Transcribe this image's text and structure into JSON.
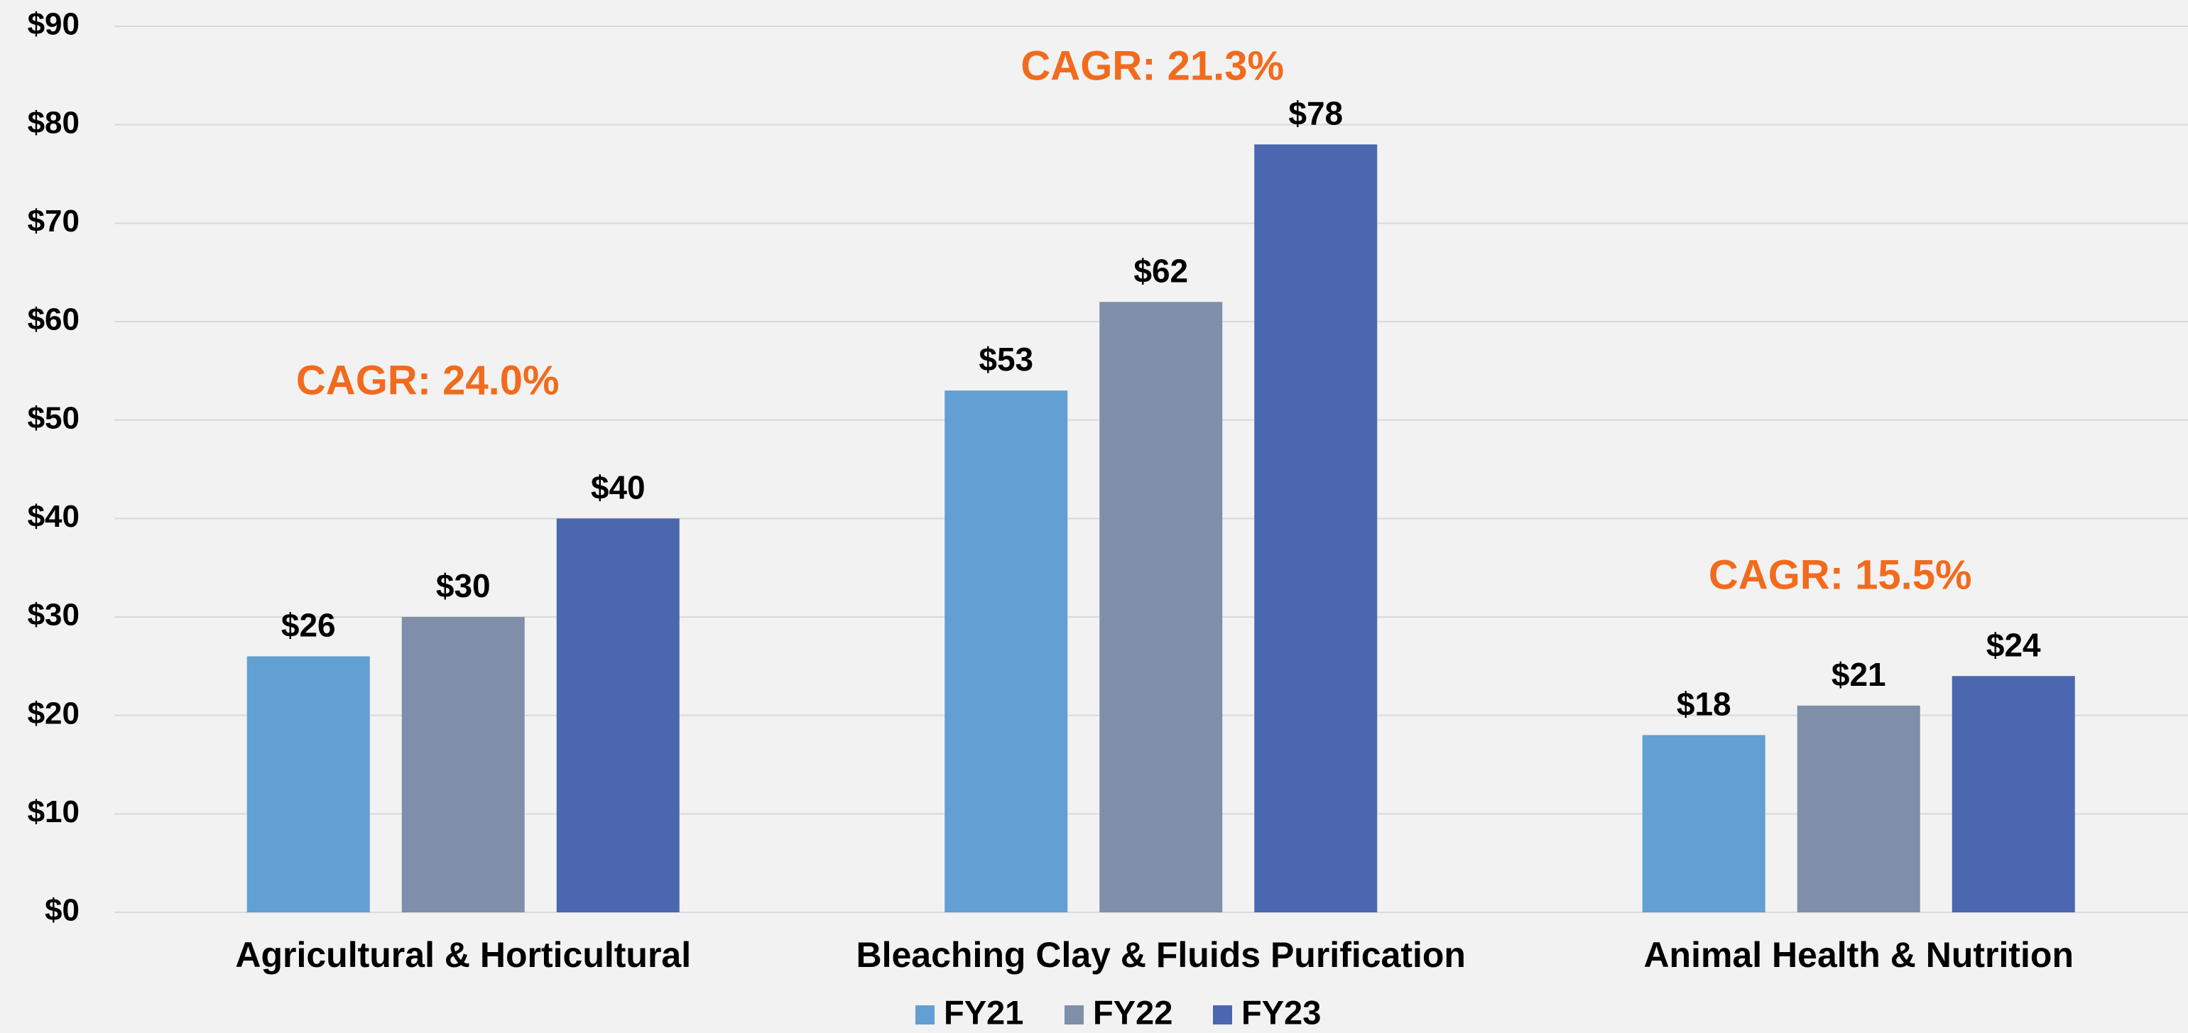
{
  "chart_data": {
    "type": "bar",
    "categories": [
      "Agricultural & Horticultural",
      "Bleaching Clay & Fluids Purification",
      "Animal Health & Nutrition"
    ],
    "series": [
      {
        "name": "FY21",
        "color": "#629fd2",
        "values": [
          26,
          53,
          18
        ],
        "value_labels": [
          "$26",
          "$53",
          "$18"
        ]
      },
      {
        "name": "FY22",
        "color": "#7f8fa9",
        "values": [
          30,
          62,
          21
        ],
        "value_labels": [
          "$30",
          "$62",
          "$21"
        ]
      },
      {
        "name": "FY23",
        "color": "#4a67af",
        "values": [
          40,
          78,
          24
        ],
        "value_labels": [
          "$40",
          "$78",
          "$24"
        ]
      }
    ],
    "annotations": [
      "CAGR: 24.0%",
      "CAGR: 21.3%",
      "CAGR: 15.5%"
    ],
    "annotation_color": "#f26b1d",
    "ylim": [
      0,
      90
    ],
    "yticks": [
      {
        "value": 0,
        "label": "$0"
      },
      {
        "value": 10,
        "label": "$10"
      },
      {
        "value": 20,
        "label": "$20"
      },
      {
        "value": 30,
        "label": "$30"
      },
      {
        "value": 40,
        "label": "$40"
      },
      {
        "value": 50,
        "label": "$50"
      },
      {
        "value": 60,
        "label": "$60"
      },
      {
        "value": 70,
        "label": "$70"
      },
      {
        "value": 80,
        "label": "$80"
      },
      {
        "value": 90,
        "label": "$90"
      }
    ],
    "grid": true,
    "legend": "bottom"
  }
}
